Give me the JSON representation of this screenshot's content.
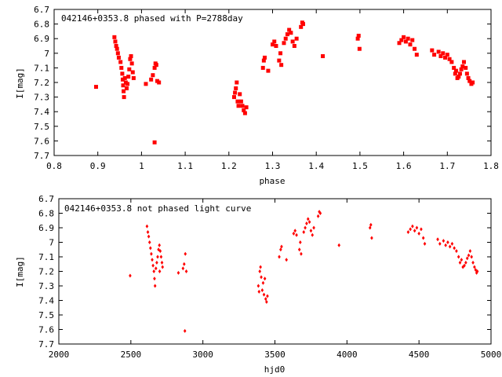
{
  "chart_data": [
    {
      "type": "scatter",
      "title": "042146+0353.8 phased with P=2788day",
      "xlabel": "phase",
      "ylabel": "I[mag]",
      "xlim": [
        0.8,
        1.8
      ],
      "ylim": [
        6.7,
        7.7
      ],
      "y_inverted": true,
      "xticks": [
        "0.8",
        "0.9",
        "1",
        "1.1",
        "1.2",
        "1.3",
        "1.4",
        "1.5",
        "1.6",
        "1.7",
        "1.8"
      ],
      "yticks": [
        "6.7",
        "6.8",
        "6.9",
        "7",
        "7.1",
        "7.2",
        "7.3",
        "7.4",
        "7.5",
        "7.6",
        "7.7"
      ],
      "grid": false,
      "series": [
        {
          "color": "#ff0000",
          "points": [
            [
              0.896,
              7.23
            ],
            [
              0.938,
              6.89
            ],
            [
              0.94,
              6.92
            ],
            [
              0.942,
              6.95
            ],
            [
              0.944,
              6.97
            ],
            [
              0.946,
              7.0
            ],
            [
              0.948,
              7.03
            ],
            [
              0.952,
              7.06
            ],
            [
              0.954,
              7.1
            ],
            [
              0.956,
              7.14
            ],
            [
              0.957,
              7.18
            ],
            [
              0.958,
              7.22
            ],
            [
              0.959,
              7.26
            ],
            [
              0.96,
              7.3
            ],
            [
              0.962,
              7.17
            ],
            [
              0.964,
              7.2
            ],
            [
              0.966,
              7.24
            ],
            [
              0.968,
              7.21
            ],
            [
              0.97,
              7.16
            ],
            [
              0.972,
              7.11
            ],
            [
              0.974,
              7.04
            ],
            [
              0.976,
              7.02
            ],
            [
              0.978,
              7.07
            ],
            [
              0.98,
              7.13
            ],
            [
              0.982,
              7.17
            ],
            [
              1.01,
              7.21
            ],
            [
              1.022,
              7.18
            ],
            [
              1.026,
              7.15
            ],
            [
              1.03,
              7.1
            ],
            [
              1.032,
              7.07
            ],
            [
              1.034,
              7.08
            ],
            [
              1.036,
              7.19
            ],
            [
              1.04,
              7.2
            ],
            [
              1.03,
              7.61
            ],
            [
              1.212,
              7.3
            ],
            [
              1.214,
              7.27
            ],
            [
              1.216,
              7.24
            ],
            [
              1.218,
              7.2
            ],
            [
              1.22,
              7.33
            ],
            [
              1.222,
              7.36
            ],
            [
              1.225,
              7.28
            ],
            [
              1.228,
              7.33
            ],
            [
              1.231,
              7.36
            ],
            [
              1.234,
              7.39
            ],
            [
              1.237,
              7.41
            ],
            [
              1.24,
              7.37
            ],
            [
              1.278,
              7.1
            ],
            [
              1.28,
              7.05
            ],
            [
              1.282,
              7.03
            ],
            [
              1.29,
              7.12
            ],
            [
              1.3,
              6.94
            ],
            [
              1.304,
              6.92
            ],
            [
              1.308,
              6.95
            ],
            [
              1.315,
              7.05
            ],
            [
              1.318,
              7.0
            ],
            [
              1.32,
              7.08
            ],
            [
              1.326,
              6.93
            ],
            [
              1.33,
              6.9
            ],
            [
              1.334,
              6.87
            ],
            [
              1.338,
              6.84
            ],
            [
              1.342,
              6.86
            ],
            [
              1.346,
              6.92
            ],
            [
              1.35,
              6.95
            ],
            [
              1.355,
              6.9
            ],
            [
              1.365,
              6.82
            ],
            [
              1.368,
              6.79
            ],
            [
              1.37,
              6.8
            ],
            [
              1.415,
              7.02
            ],
            [
              1.495,
              6.9
            ],
            [
              1.497,
              6.88
            ],
            [
              1.499,
              6.97
            ],
            [
              1.59,
              6.93
            ],
            [
              1.595,
              6.91
            ],
            [
              1.6,
              6.89
            ],
            [
              1.605,
              6.92
            ],
            [
              1.61,
              6.9
            ],
            [
              1.615,
              6.94
            ],
            [
              1.62,
              6.91
            ],
            [
              1.625,
              6.97
            ],
            [
              1.63,
              7.01
            ],
            [
              1.665,
              6.98
            ],
            [
              1.67,
              7.01
            ],
            [
              1.68,
              6.99
            ],
            [
              1.685,
              7.02
            ],
            [
              1.69,
              7.0
            ],
            [
              1.695,
              7.03
            ],
            [
              1.7,
              7.01
            ],
            [
              1.705,
              7.04
            ],
            [
              1.71,
              7.06
            ],
            [
              1.715,
              7.1
            ],
            [
              1.718,
              7.14
            ],
            [
              1.72,
              7.12
            ],
            [
              1.723,
              7.17
            ],
            [
              1.726,
              7.16
            ],
            [
              1.729,
              7.14
            ],
            [
              1.732,
              7.11
            ],
            [
              1.735,
              7.09
            ],
            [
              1.738,
              7.06
            ],
            [
              1.742,
              7.1
            ],
            [
              1.745,
              7.14
            ],
            [
              1.748,
              7.17
            ],
            [
              1.751,
              7.19
            ],
            [
              1.755,
              7.21
            ],
            [
              1.758,
              7.2
            ]
          ]
        }
      ]
    },
    {
      "type": "scatter",
      "title": "042146+0353.8 not phased light curve",
      "xlabel": "hjd0",
      "ylabel": "I[mag]",
      "xlim": [
        2000,
        5000
      ],
      "ylim": [
        6.7,
        7.7
      ],
      "y_inverted": true,
      "xticks": [
        "2000",
        "2500",
        "3000",
        "3500",
        "4000",
        "4500",
        "5000"
      ],
      "yticks": [
        "6.7",
        "6.8",
        "6.9",
        "7",
        "7.1",
        "7.2",
        "7.3",
        "7.4",
        "7.5",
        "7.6",
        "7.7"
      ],
      "grid": false,
      "series": [
        {
          "color": "#ff0000",
          "points": [
            [
              2495,
              7.23
            ],
            [
              2612,
              6.89
            ],
            [
              2618,
              6.93
            ],
            [
              2624,
              6.96
            ],
            [
              2630,
              7.0
            ],
            [
              2636,
              7.04
            ],
            [
              2642,
              7.08
            ],
            [
              2648,
              7.12
            ],
            [
              2654,
              7.16
            ],
            [
              2660,
              7.2
            ],
            [
              2664,
              7.25
            ],
            [
              2668,
              7.3
            ],
            [
              2674,
              7.18
            ],
            [
              2680,
              7.14
            ],
            [
              2686,
              7.1
            ],
            [
              2692,
              7.05
            ],
            [
              2698,
              7.02
            ],
            [
              2704,
              7.06
            ],
            [
              2710,
              7.1
            ],
            [
              2716,
              7.14
            ],
            [
              2720,
              7.17
            ],
            [
              2700,
              7.2
            ],
            [
              2830,
              7.21
            ],
            [
              2862,
              7.18
            ],
            [
              2870,
              7.15
            ],
            [
              2878,
              7.08
            ],
            [
              2885,
              7.2
            ],
            [
              2875,
              7.61
            ],
            [
              3385,
              7.3
            ],
            [
              3390,
              7.34
            ],
            [
              3395,
              7.2
            ],
            [
              3400,
              7.17
            ],
            [
              3405,
              7.24
            ],
            [
              3412,
              7.33
            ],
            [
              3418,
              7.28
            ],
            [
              3424,
              7.36
            ],
            [
              3430,
              7.25
            ],
            [
              3436,
              7.39
            ],
            [
              3442,
              7.41
            ],
            [
              3448,
              7.37
            ],
            [
              3530,
              7.1
            ],
            [
              3540,
              7.05
            ],
            [
              3546,
              7.03
            ],
            [
              3580,
              7.12
            ],
            [
              3630,
              6.94
            ],
            [
              3640,
              6.92
            ],
            [
              3650,
              6.95
            ],
            [
              3670,
              7.05
            ],
            [
              3676,
              7.0
            ],
            [
              3682,
              7.08
            ],
            [
              3700,
              6.93
            ],
            [
              3710,
              6.9
            ],
            [
              3720,
              6.87
            ],
            [
              3730,
              6.84
            ],
            [
              3740,
              6.86
            ],
            [
              3750,
              6.92
            ],
            [
              3760,
              6.95
            ],
            [
              3770,
              6.9
            ],
            [
              3800,
              6.82
            ],
            [
              3808,
              6.79
            ],
            [
              3815,
              6.8
            ],
            [
              3945,
              7.02
            ],
            [
              4160,
              6.9
            ],
            [
              4166,
              6.88
            ],
            [
              4172,
              6.97
            ],
            [
              4425,
              6.93
            ],
            [
              4440,
              6.91
            ],
            [
              4455,
              6.89
            ],
            [
              4470,
              6.92
            ],
            [
              4485,
              6.9
            ],
            [
              4500,
              6.94
            ],
            [
              4515,
              6.91
            ],
            [
              4530,
              6.97
            ],
            [
              4540,
              7.01
            ],
            [
              4630,
              6.98
            ],
            [
              4645,
              7.01
            ],
            [
              4670,
              6.99
            ],
            [
              4685,
              7.02
            ],
            [
              4700,
              7.0
            ],
            [
              4715,
              7.03
            ],
            [
              4730,
              7.01
            ],
            [
              4745,
              7.04
            ],
            [
              4760,
              7.06
            ],
            [
              4775,
              7.1
            ],
            [
              4785,
              7.14
            ],
            [
              4795,
              7.12
            ],
            [
              4805,
              7.17
            ],
            [
              4815,
              7.16
            ],
            [
              4825,
              7.14
            ],
            [
              4835,
              7.11
            ],
            [
              4845,
              7.09
            ],
            [
              4855,
              7.06
            ],
            [
              4865,
              7.1
            ],
            [
              4875,
              7.14
            ],
            [
              4885,
              7.17
            ],
            [
              4893,
              7.19
            ],
            [
              4900,
              7.21
            ],
            [
              4905,
              7.2
            ]
          ]
        }
      ]
    }
  ]
}
